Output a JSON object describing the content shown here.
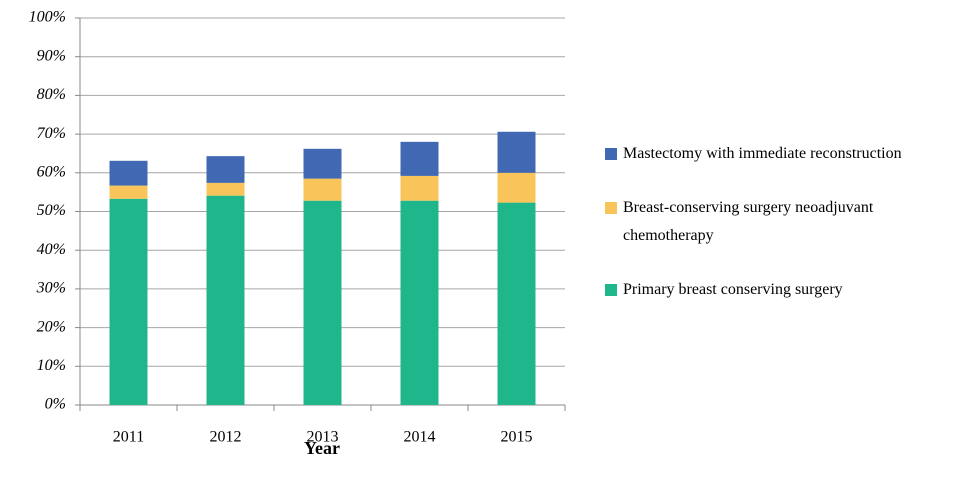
{
  "chart_data": {
    "type": "stacked_bar",
    "x_label": "Year",
    "categories": [
      "2011",
      "2012",
      "2013",
      "2014",
      "2015"
    ],
    "series": [
      {
        "name": "Primary breast conserving surgery",
        "color": "#20b68c",
        "values": [
          53.3,
          54.1,
          52.8,
          52.8,
          52.3
        ]
      },
      {
        "name": "Breast-conserving surgery neoadjuvant chemotherapy",
        "color": "#f9c55a",
        "values": [
          3.4,
          3.3,
          5.7,
          6.4,
          7.7
        ]
      },
      {
        "name": "Mastectomy with immediate reconstruction",
        "color": "#4068b3",
        "values": [
          6.4,
          6.9,
          7.7,
          8.8,
          10.6
        ]
      }
    ],
    "ylim": [
      0,
      100
    ],
    "yticks": [
      {
        "value": 0,
        "label": "0%"
      },
      {
        "value": 10,
        "label": "10%"
      },
      {
        "value": 20,
        "label": "20%"
      },
      {
        "value": 30,
        "label": "30%"
      },
      {
        "value": 40,
        "label": "40%"
      },
      {
        "value": 50,
        "label": "50%"
      },
      {
        "value": 60,
        "label": "60%"
      },
      {
        "value": 70,
        "label": "70%"
      },
      {
        "value": 80,
        "label": "80%"
      },
      {
        "value": 90,
        "label": "90%"
      },
      {
        "value": 100,
        "label": "100%"
      }
    ],
    "grid": true,
    "legend": "right"
  }
}
